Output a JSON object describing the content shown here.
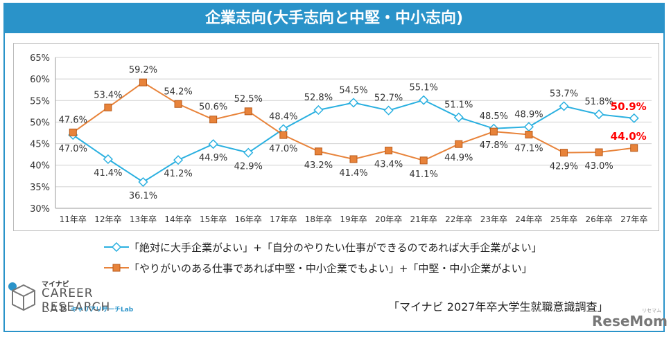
{
  "title": "企業志向(大手志向と中堅・中小志向)",
  "legend": {
    "series1": "「絶対に大手企業がよい」+「自分のやりたい仕事ができるのであれば大手企業がよい」",
    "series2": "「やりがいのある仕事であれば中堅・中小企業でもよい」+「中堅・中小企業がよい」"
  },
  "source": "「マイナビ 2027年卒大学生就職意識調査」",
  "logo": {
    "small": "マイナビ",
    "main": "CAREER RESEARCH",
    "lab": "LAB",
    "sub": "キャリアリサーチLab"
  },
  "watermark": "ReseMom",
  "watermark_sub": "リセマム",
  "colors": {
    "frame": "#2a93c9",
    "series1": "#2ab0e0",
    "series2": "#e8833a",
    "highlight": "#ff0000"
  },
  "chart_data": {
    "type": "line",
    "categories": [
      "11年卒",
      "12年卒",
      "13年卒",
      "14年卒",
      "15年卒",
      "16年卒",
      "17年卒",
      "18年卒",
      "19年卒",
      "20年卒",
      "21年卒",
      "22年卒",
      "23年卒",
      "24年卒",
      "25年卒",
      "26年卒",
      "27年卒"
    ],
    "ylim": [
      30,
      65
    ],
    "yticks": [
      "30%",
      "35%",
      "40%",
      "45%",
      "50%",
      "55%",
      "60%",
      "65%"
    ],
    "grid": true,
    "series": [
      {
        "name": "「絶対に大手企業がよい」+「自分のやりたい仕事ができるのであれば大手企業がよい」",
        "values": [
          47.0,
          41.4,
          36.1,
          41.2,
          44.9,
          42.9,
          48.4,
          52.8,
          54.5,
          52.7,
          55.1,
          51.1,
          48.5,
          48.9,
          53.7,
          51.8,
          50.9
        ],
        "labels": [
          "47.0%",
          "41.4%",
          "36.1%",
          "41.2%",
          "44.9%",
          "42.9%",
          "48.4%",
          "52.8%",
          "54.5%",
          "52.7%",
          "55.1%",
          "51.1%",
          "48.5%",
          "48.9%",
          "53.7%",
          "51.8%",
          "50.9%"
        ]
      },
      {
        "name": "「やりがいのある仕事であれば中堅・中小企業でもよい」+「中堅・中小企業がよい」",
        "values": [
          47.6,
          53.4,
          59.2,
          54.2,
          50.6,
          52.5,
          47.0,
          43.2,
          41.4,
          43.4,
          41.1,
          44.9,
          47.8,
          47.1,
          42.9,
          43.0,
          44.0
        ],
        "labels": [
          "47.6%",
          "53.4%",
          "59.2%",
          "54.2%",
          "50.6%",
          "52.5%",
          "47.0%",
          "43.2%",
          "41.4%",
          "43.4%",
          "41.1%",
          "44.9%",
          "47.8%",
          "47.1%",
          "42.9%",
          "43.0%",
          "44.0%"
        ]
      }
    ]
  }
}
